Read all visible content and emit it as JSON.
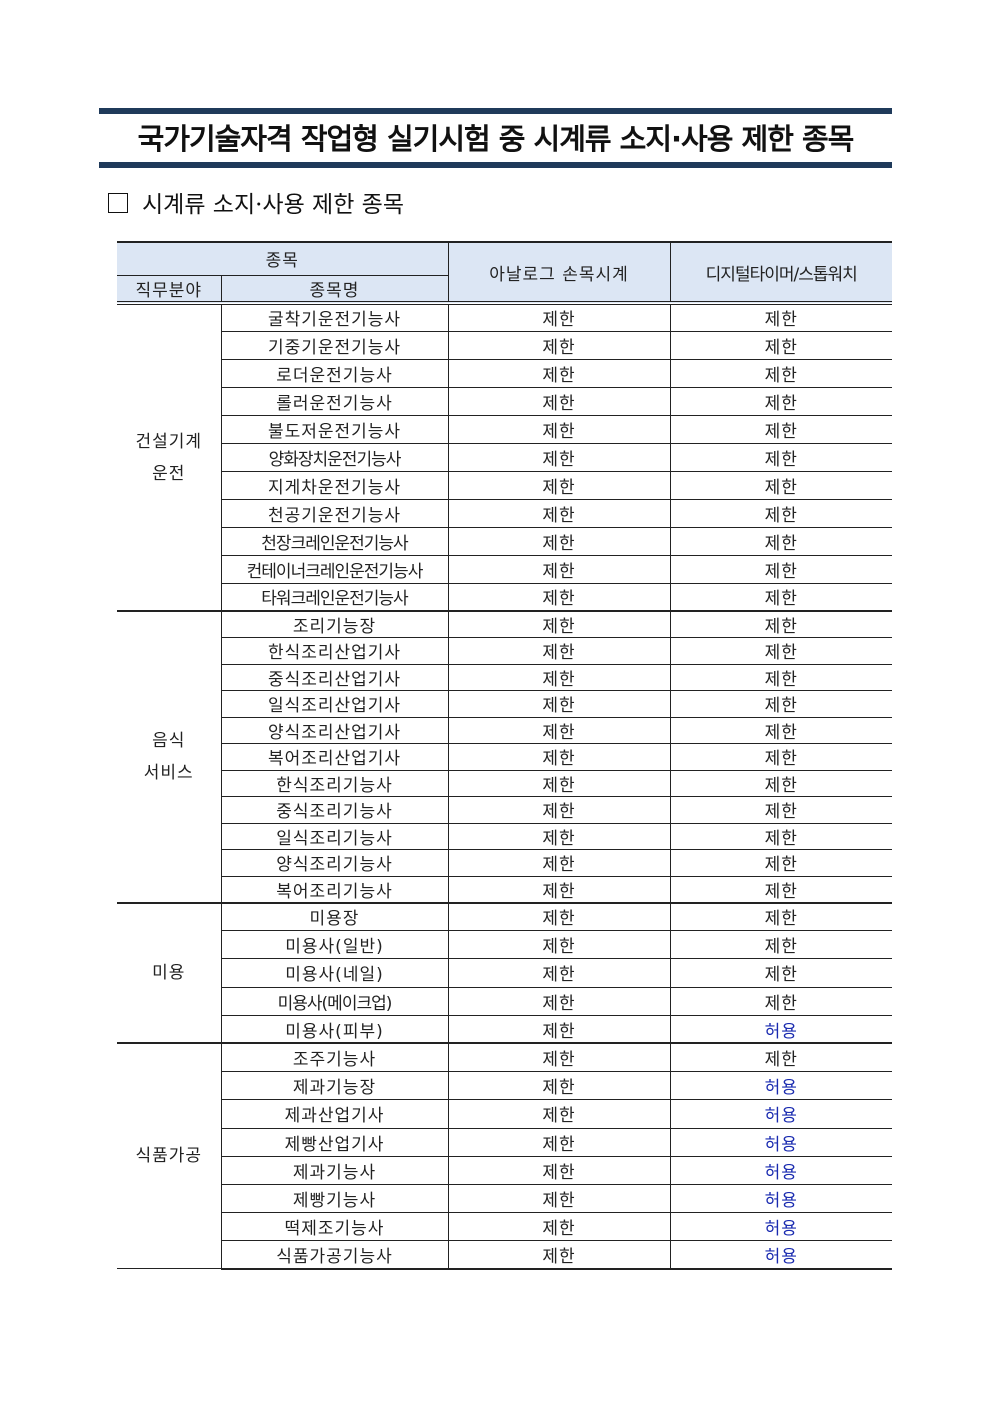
{
  "title": "국가기술자격 작업형 실기시험 중 시계류 소지·사용 제한 종목",
  "section_heading": "시계류 소지·사용 제한 종목",
  "table": {
    "headers": {
      "item": "종목",
      "field": "직무분야",
      "item_name": "종목명",
      "analog": "아날로그 손목시계",
      "digital": "디지털타이머/스톱워치"
    },
    "colors": {
      "restricted": "#222222",
      "allowed": "#1a2bb0"
    },
    "groups": [
      {
        "field": "건설기계\n운전",
        "rows": [
          [
            "굴착기운전기능사",
            "제한",
            "제한"
          ],
          [
            "기중기운전기능사",
            "제한",
            "제한"
          ],
          [
            "로더운전기능사",
            "제한",
            "제한"
          ],
          [
            "롤러운전기능사",
            "제한",
            "제한"
          ],
          [
            "불도저운전기능사",
            "제한",
            "제한"
          ],
          [
            "양화장치운전기능사",
            "제한",
            "제한"
          ],
          [
            "지게차운전기능사",
            "제한",
            "제한"
          ],
          [
            "천공기운전기능사",
            "제한",
            "제한"
          ],
          [
            "천장크레인운전기능사",
            "제한",
            "제한"
          ],
          [
            "컨테이너크레인운전기능사",
            "제한",
            "제한"
          ],
          [
            "타워크레인운전기능사",
            "제한",
            "제한"
          ]
        ]
      },
      {
        "field": "음식\n서비스",
        "rows": [
          [
            "조리기능장",
            "제한",
            "제한"
          ],
          [
            "한식조리산업기사",
            "제한",
            "제한"
          ],
          [
            "중식조리산업기사",
            "제한",
            "제한"
          ],
          [
            "일식조리산업기사",
            "제한",
            "제한"
          ],
          [
            "양식조리산업기사",
            "제한",
            "제한"
          ],
          [
            "복어조리산업기사",
            "제한",
            "제한"
          ],
          [
            "한식조리기능사",
            "제한",
            "제한"
          ],
          [
            "중식조리기능사",
            "제한",
            "제한"
          ],
          [
            "일식조리기능사",
            "제한",
            "제한"
          ],
          [
            "양식조리기능사",
            "제한",
            "제한"
          ],
          [
            "복어조리기능사",
            "제한",
            "제한"
          ]
        ]
      },
      {
        "field": "미용",
        "rows": [
          [
            "미용장",
            "제한",
            "제한"
          ],
          [
            "미용사(일반)",
            "제한",
            "제한"
          ],
          [
            "미용사(네일)",
            "제한",
            "제한"
          ],
          [
            "미용사(메이크업)",
            "제한",
            "제한"
          ],
          [
            "미용사(피부)",
            "제한",
            "허용"
          ]
        ]
      },
      {
        "field": "식품가공",
        "rows": [
          [
            "조주기능사",
            "제한",
            "제한"
          ],
          [
            "제과기능장",
            "제한",
            "허용"
          ],
          [
            "제과산업기사",
            "제한",
            "허용"
          ],
          [
            "제빵산업기사",
            "제한",
            "허용"
          ],
          [
            "제과기능사",
            "제한",
            "허용"
          ],
          [
            "제빵기능사",
            "제한",
            "허용"
          ],
          [
            "떡제조기능사",
            "제한",
            "허용"
          ],
          [
            "식품가공기능사",
            "제한",
            "허용"
          ]
        ]
      }
    ]
  }
}
